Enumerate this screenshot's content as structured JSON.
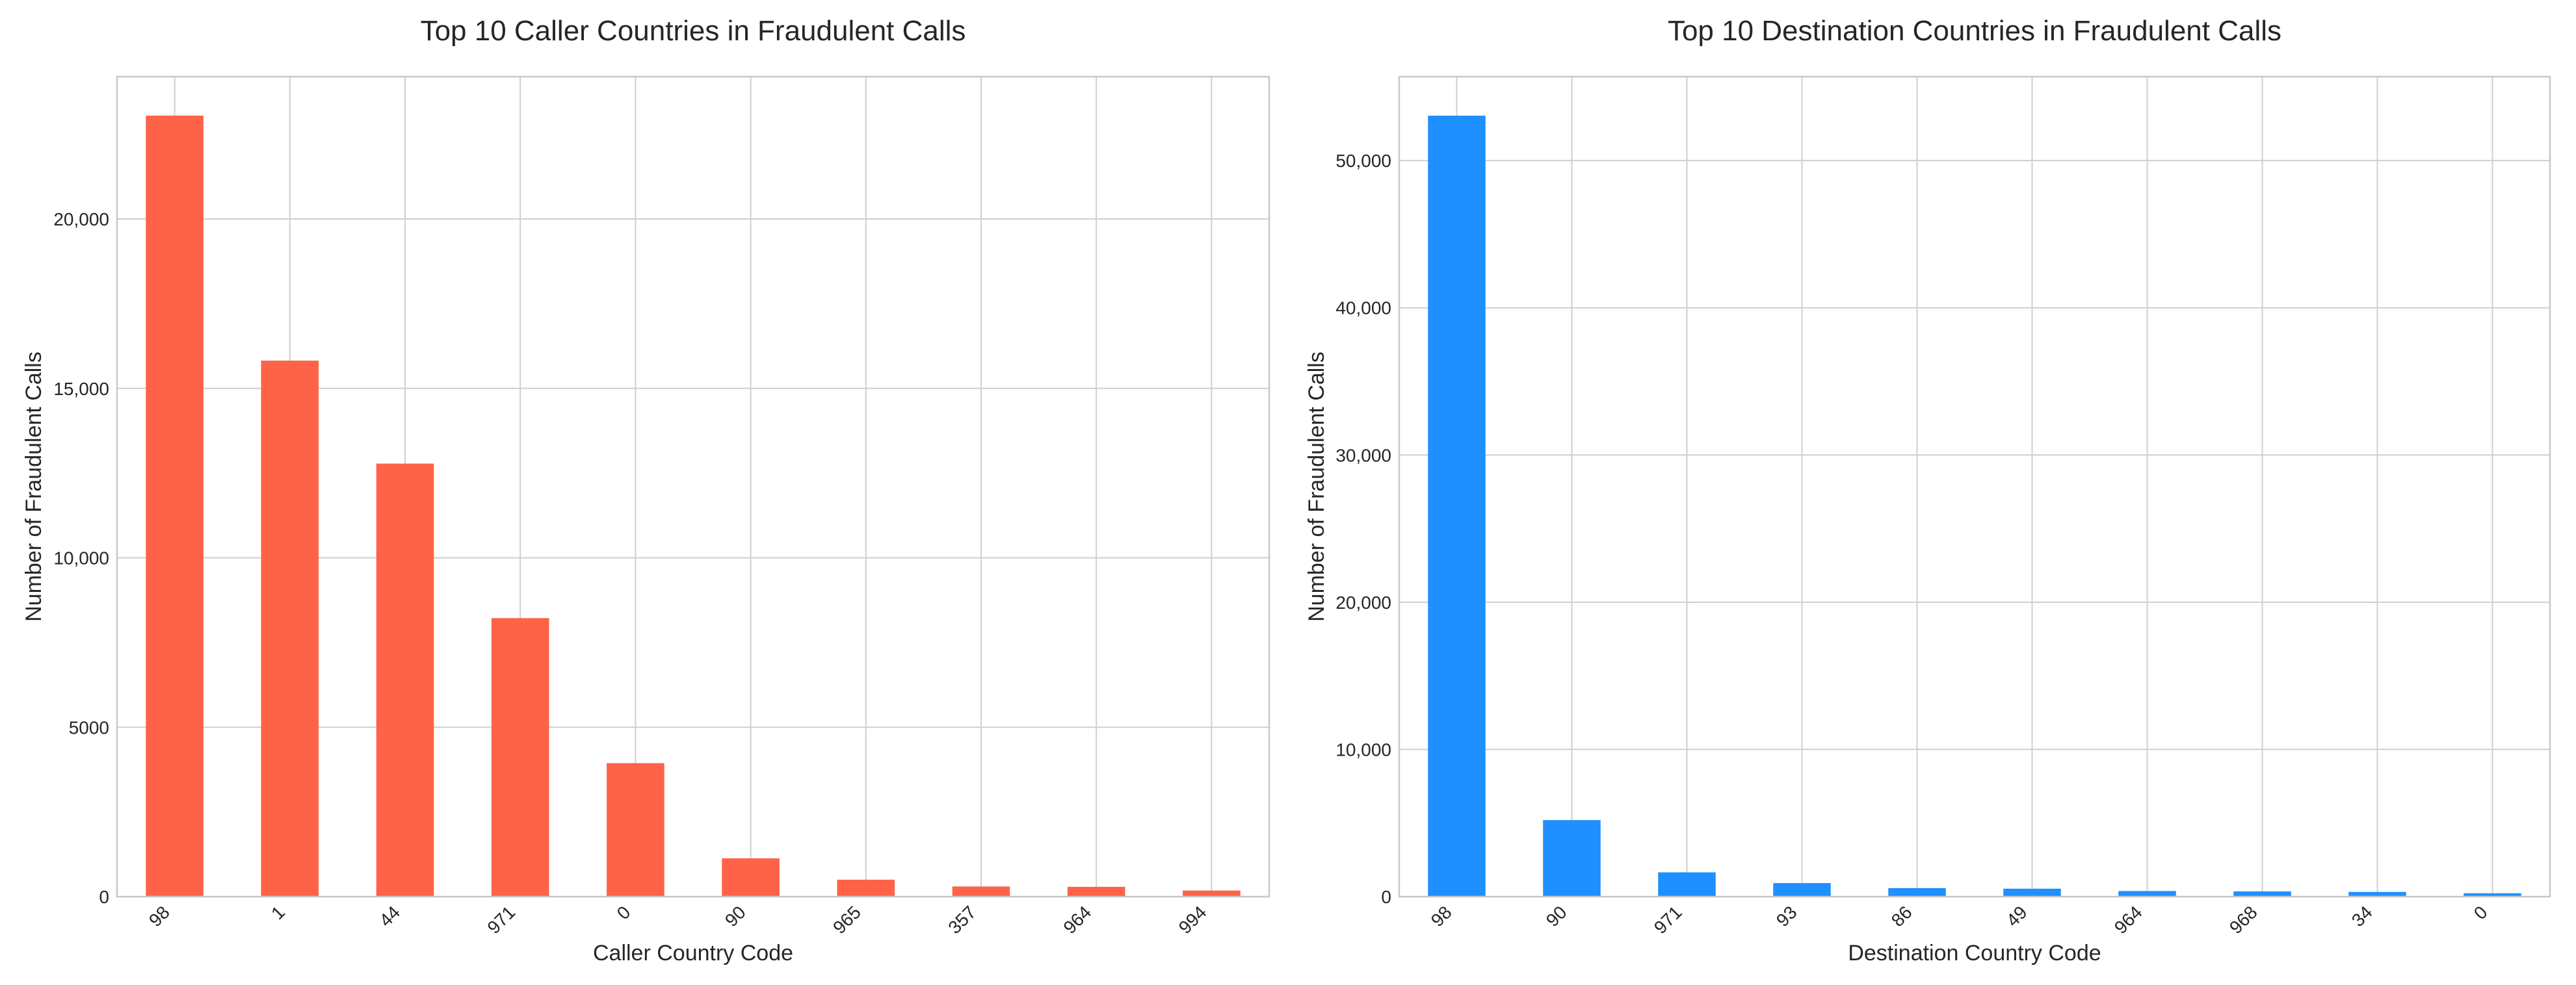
{
  "colors": {
    "caller_bar": "#ff6347",
    "destination_bar": "#1e90ff"
  },
  "chart_data": [
    {
      "type": "bar",
      "title": "Top 10 Caller Countries in Fraudulent Calls",
      "xlabel": "Caller Country Code",
      "ylabel": "Number of Fraudulent Calls",
      "categories": [
        "98",
        "1",
        "44",
        "971",
        "0",
        "90",
        "965",
        "357",
        "964",
        "994"
      ],
      "values": [
        23050,
        15820,
        12780,
        8220,
        3940,
        1130,
        500,
        300,
        290,
        180
      ],
      "ylim": [
        0,
        24200
      ],
      "yticks": [
        0,
        5000,
        10000,
        15000,
        20000
      ],
      "ytick_labels": [
        "0",
        "5000",
        "10,000",
        "15,000",
        "20,000"
      ],
      "grid": true,
      "color": "#ff6347"
    },
    {
      "type": "bar",
      "title": "Top 10 Destination Countries in Fraudulent Calls",
      "xlabel": "Destination Country Code",
      "ylabel": "Number of Fraudulent Calls",
      "categories": [
        "98",
        "90",
        "971",
        "93",
        "86",
        "49",
        "964",
        "968",
        "34",
        "0"
      ],
      "values": [
        53050,
        5200,
        1650,
        920,
        580,
        540,
        380,
        360,
        320,
        230
      ],
      "ylim": [
        0,
        55700
      ],
      "yticks": [
        0,
        10000,
        20000,
        30000,
        40000,
        50000
      ],
      "ytick_labels": [
        "0",
        "10,000",
        "20,000",
        "30,000",
        "40,000",
        "50,000"
      ],
      "grid": true,
      "color": "#1e90ff"
    }
  ]
}
